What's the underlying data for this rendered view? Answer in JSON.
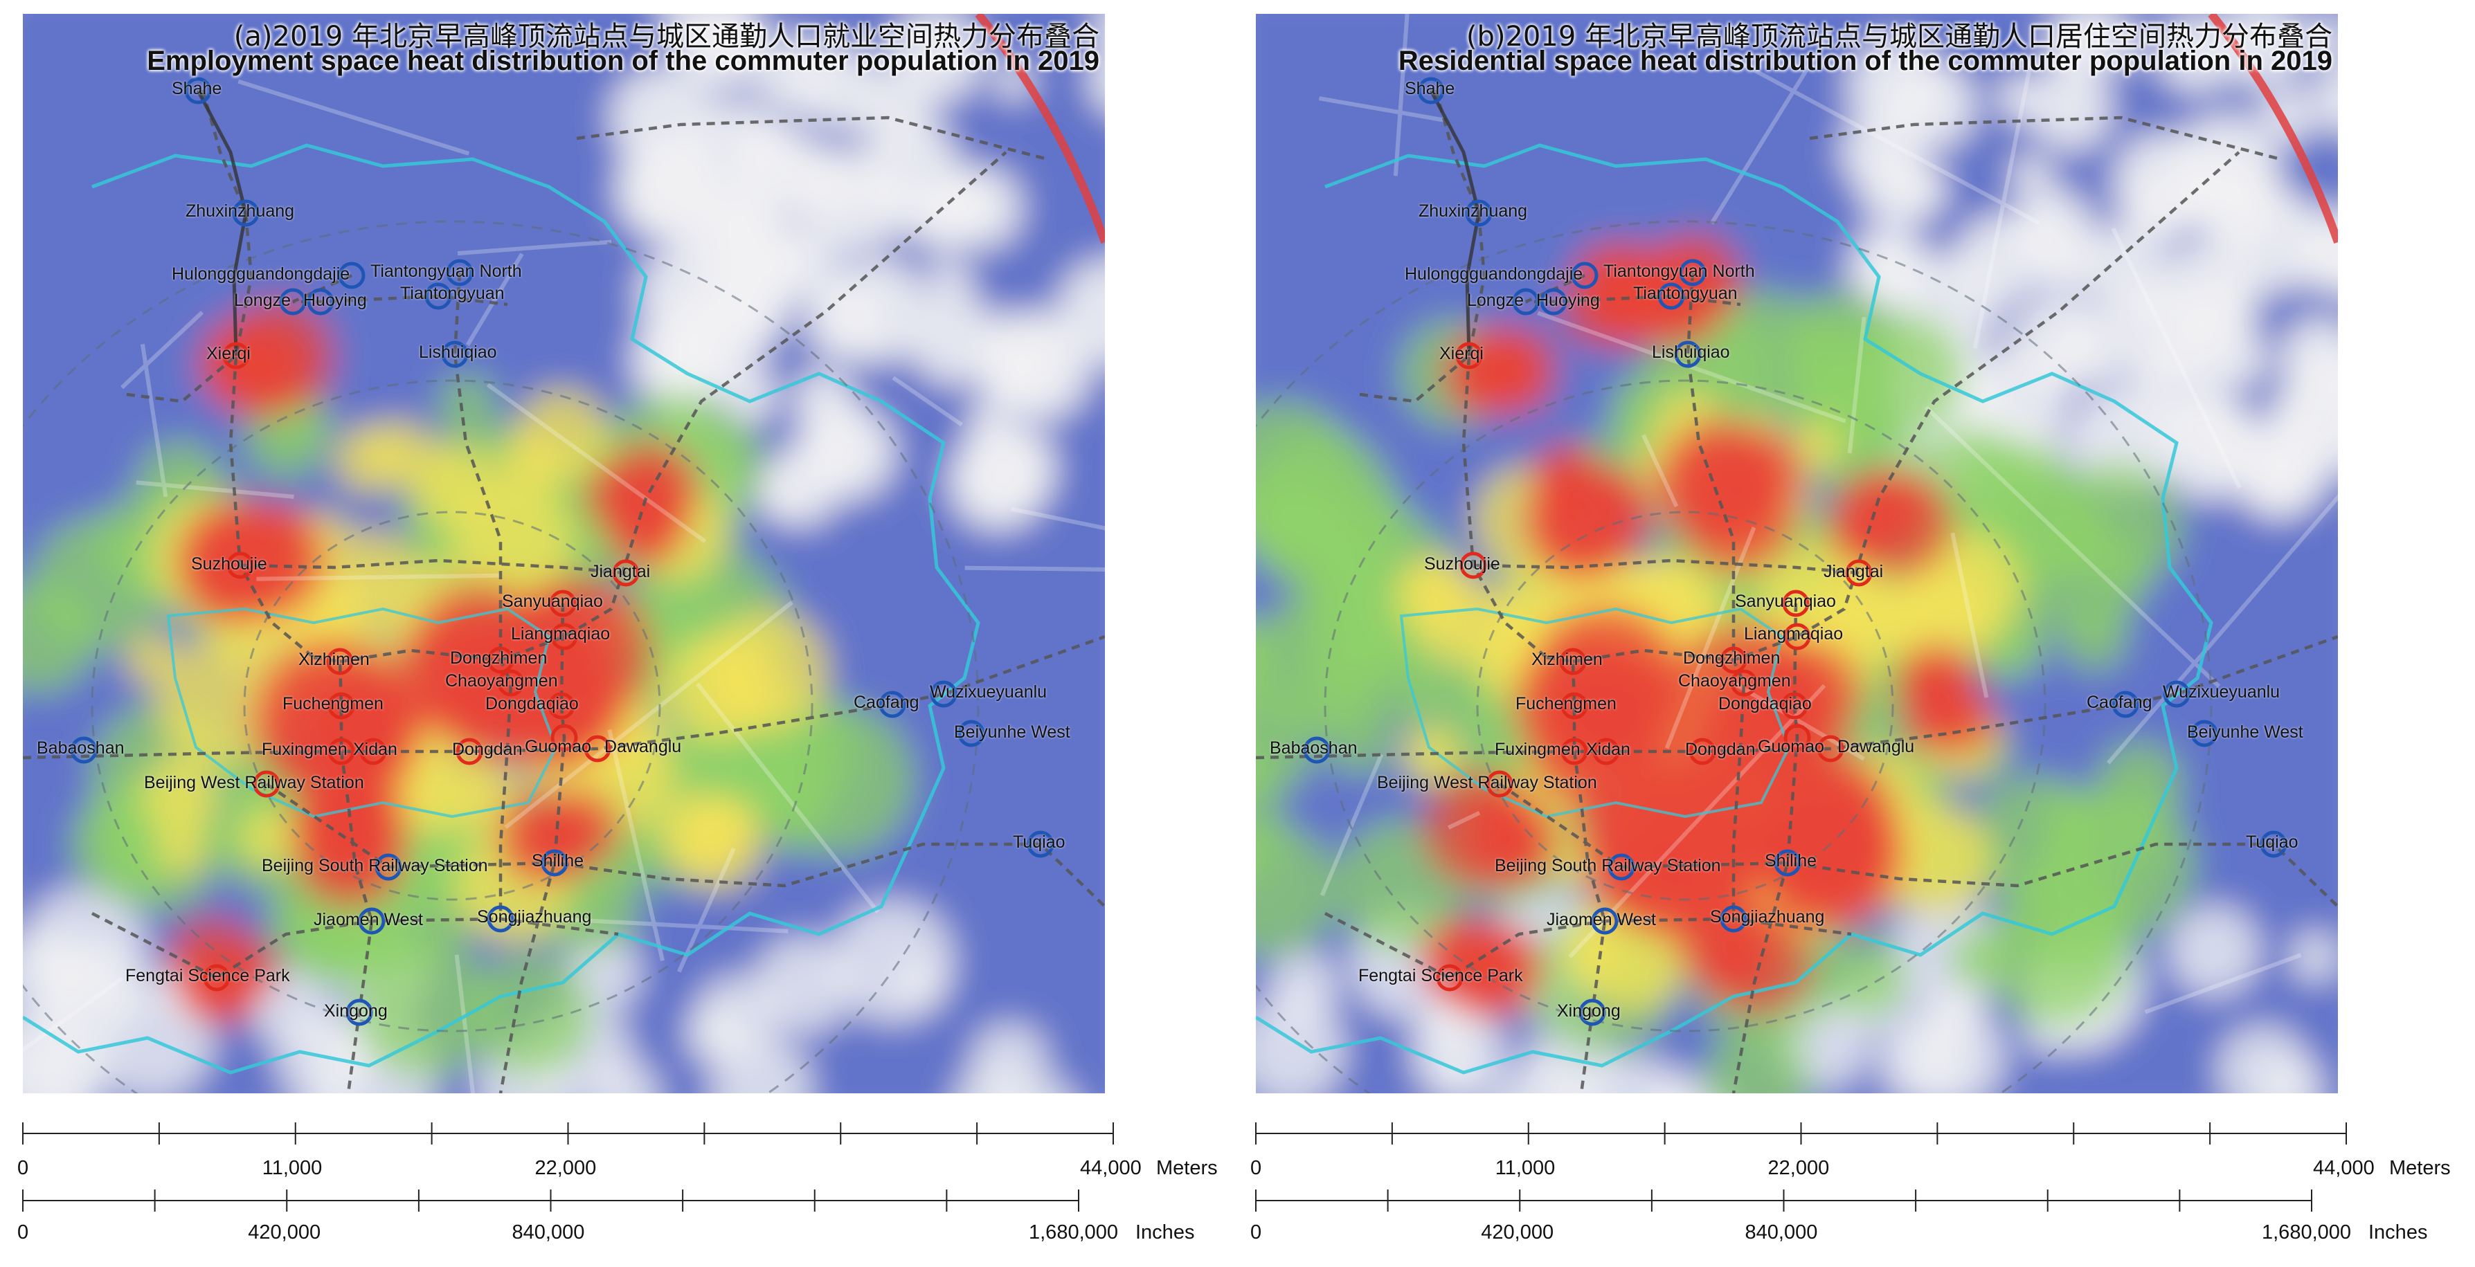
{
  "panels": [
    {
      "id": "a",
      "title_cn": "(a)2019 年北京早高峰顶流站点与城区通勤人口就业空间热力分布叠合",
      "title_en": "Employment space heat distribution of the commuter population in 2019"
    },
    {
      "id": "b",
      "title_cn": "(b)2019 年北京早高峰顶流站点与城区通勤人口居住空间热力分布叠合",
      "title_en": "Residential space heat distribution of the commuter population in 2019"
    }
  ],
  "station_categories": {
    "red": "#e02a1c",
    "blue": "#1f56b5"
  },
  "stations": [
    {
      "name": "Shahe",
      "cat": "blue"
    },
    {
      "name": "Zhuxinzhuang",
      "cat": "blue"
    },
    {
      "name": "Hulonggguandongdajie",
      "cat": "blue"
    },
    {
      "name": "Longze",
      "cat": "blue"
    },
    {
      "name": "Huoying",
      "cat": "blue"
    },
    {
      "name": "Tiantongyuan North",
      "cat": "blue"
    },
    {
      "name": "Tiantongyuan",
      "cat": "blue"
    },
    {
      "name": "Lishuiqiao",
      "cat": "blue"
    },
    {
      "name": "Xierqi",
      "cat": "red"
    },
    {
      "name": "Suzhoujie",
      "cat": "red"
    },
    {
      "name": "Jiangtai",
      "cat": "red"
    },
    {
      "name": "Sanyuanqiao",
      "cat": "red"
    },
    {
      "name": "Liangmaqiao",
      "cat": "red"
    },
    {
      "name": "Xizhimen",
      "cat": "red"
    },
    {
      "name": "Dongzhimen",
      "cat": "red"
    },
    {
      "name": "Chaoyangmen",
      "cat": "red"
    },
    {
      "name": "Fuchengmen",
      "cat": "red"
    },
    {
      "name": "Dongdaqiao",
      "cat": "red"
    },
    {
      "name": "Fuxingmen",
      "cat": "red"
    },
    {
      "name": "Xidan",
      "cat": "red"
    },
    {
      "name": "Dongdan",
      "cat": "red"
    },
    {
      "name": "Guomao",
      "cat": "red"
    },
    {
      "name": "Dawanglu",
      "cat": "red"
    },
    {
      "name": "Caofang",
      "cat": "blue"
    },
    {
      "name": "Wuzixueyuanlu",
      "cat": "blue"
    },
    {
      "name": "Beiyunhe West",
      "cat": "blue"
    },
    {
      "name": "Babaoshan",
      "cat": "blue"
    },
    {
      "name": "Beijing West Railway Station",
      "cat": "red"
    },
    {
      "name": "Tuqiao",
      "cat": "blue"
    },
    {
      "name": "Beijing South Railway Station",
      "cat": "blue"
    },
    {
      "name": "Shilihe",
      "cat": "blue"
    },
    {
      "name": "Jiaomen West",
      "cat": "blue"
    },
    {
      "name": "Songjiazhuang",
      "cat": "blue"
    },
    {
      "name": "Fengtai Science Park",
      "cat": "red"
    },
    {
      "name": "Xingong",
      "cat": "blue"
    }
  ],
  "scale": {
    "meters": {
      "labels": [
        "0",
        "11,000",
        "22,000",
        "44,000"
      ],
      "unit": "Meters"
    },
    "inches": {
      "labels": [
        "0",
        "420,000",
        "840,000",
        "1,680,000"
      ],
      "unit": "Inches"
    }
  },
  "colors": {
    "heat_low": "#4a5fc4",
    "heat_mid": "#8fd26a",
    "heat_high": "#e8453a",
    "district_boundary": "#35c8d8",
    "rail_line": "#e04040",
    "metro_line": "#555555"
  }
}
